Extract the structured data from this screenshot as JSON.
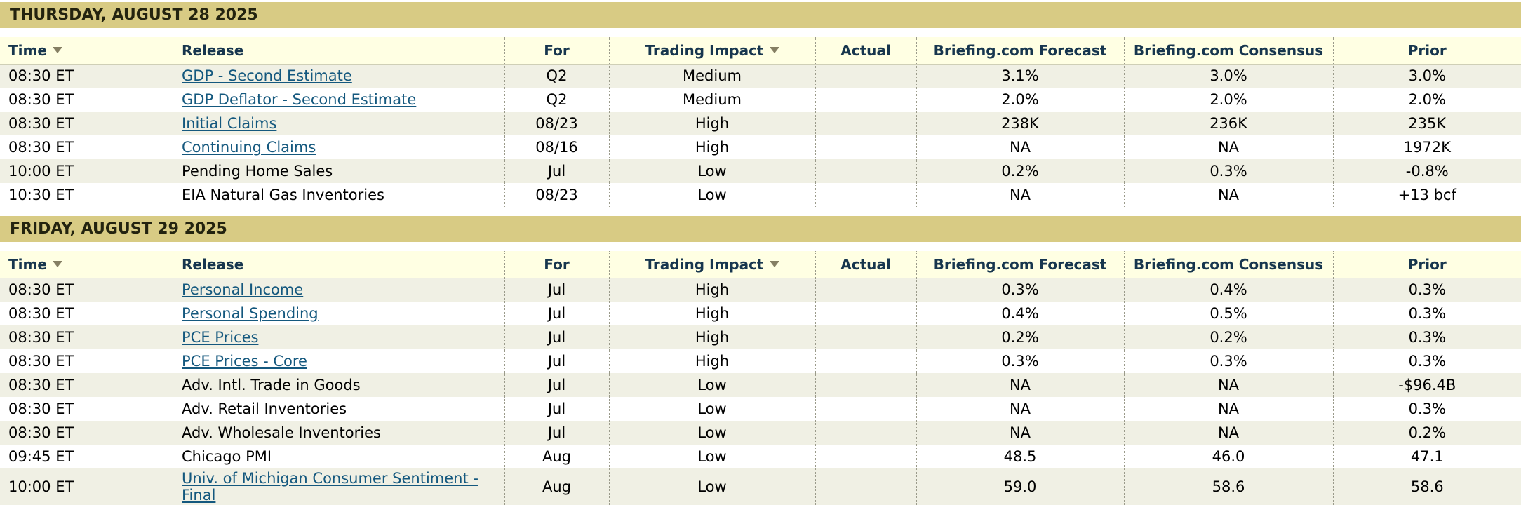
{
  "colors": {
    "day_header_bg": "#d8cb84",
    "day_header_text": "#23230f",
    "column_header_bg": "#ffffe3",
    "header_text": "#17364e",
    "row_alt_bg": "#f0f0e4",
    "link": "#14587e"
  },
  "icons": {
    "time_sort": "sort-down-triangle",
    "impact_filter": "sort-down-triangle"
  },
  "columns": {
    "time": "Time",
    "release": "Release",
    "for": "For",
    "impact": "Trading Impact",
    "actual": "Actual",
    "forecast": "Briefing.com Forecast",
    "consensus": "Briefing.com Consensus",
    "prior": "Prior"
  },
  "sections": [
    {
      "day": "THURSDAY, AUGUST 28 2025",
      "rows": [
        {
          "time": "08:30 ET",
          "release": "GDP - Second Estimate",
          "link": true,
          "for": "Q2",
          "impact": "Medium",
          "actual": "",
          "forecast": "3.1%",
          "consensus": "3.0%",
          "prior": "3.0%"
        },
        {
          "time": "08:30 ET",
          "release": "GDP Deflator - Second Estimate",
          "link": true,
          "for": "Q2",
          "impact": "Medium",
          "actual": "",
          "forecast": "2.0%",
          "consensus": "2.0%",
          "prior": "2.0%"
        },
        {
          "time": "08:30 ET",
          "release": "Initial Claims",
          "link": true,
          "for": "08/23",
          "impact": "High",
          "actual": "",
          "forecast": "238K",
          "consensus": "236K",
          "prior": "235K"
        },
        {
          "time": "08:30 ET",
          "release": "Continuing Claims",
          "link": true,
          "for": "08/16",
          "impact": "High",
          "actual": "",
          "forecast": "NA",
          "consensus": "NA",
          "prior": "1972K"
        },
        {
          "time": "10:00 ET",
          "release": "Pending Home Sales",
          "link": false,
          "for": "Jul",
          "impact": "Low",
          "actual": "",
          "forecast": "0.2%",
          "consensus": "0.3%",
          "prior": "-0.8%"
        },
        {
          "time": "10:30 ET",
          "release": "EIA Natural Gas Inventories",
          "link": false,
          "for": "08/23",
          "impact": "Low",
          "actual": "",
          "forecast": "NA",
          "consensus": "NA",
          "prior": "+13 bcf"
        }
      ]
    },
    {
      "day": "FRIDAY, AUGUST 29 2025",
      "rows": [
        {
          "time": "08:30 ET",
          "release": "Personal Income",
          "link": true,
          "for": "Jul",
          "impact": "High",
          "actual": "",
          "forecast": "0.3%",
          "consensus": "0.4%",
          "prior": "0.3%"
        },
        {
          "time": "08:30 ET",
          "release": "Personal Spending",
          "link": true,
          "for": "Jul",
          "impact": "High",
          "actual": "",
          "forecast": "0.4%",
          "consensus": "0.5%",
          "prior": "0.3%"
        },
        {
          "time": "08:30 ET",
          "release": "PCE Prices",
          "link": true,
          "for": "Jul",
          "impact": "High",
          "actual": "",
          "forecast": "0.2%",
          "consensus": "0.2%",
          "prior": "0.3%"
        },
        {
          "time": "08:30 ET",
          "release": "PCE Prices - Core",
          "link": true,
          "for": "Jul",
          "impact": "High",
          "actual": "",
          "forecast": "0.3%",
          "consensus": "0.3%",
          "prior": "0.3%"
        },
        {
          "time": "08:30 ET",
          "release": "Adv. Intl. Trade in Goods",
          "link": false,
          "for": "Jul",
          "impact": "Low",
          "actual": "",
          "forecast": "NA",
          "consensus": "NA",
          "prior": "-$96.4B"
        },
        {
          "time": "08:30 ET",
          "release": "Adv. Retail Inventories",
          "link": false,
          "for": "Jul",
          "impact": "Low",
          "actual": "",
          "forecast": "NA",
          "consensus": "NA",
          "prior": "0.3%"
        },
        {
          "time": "08:30 ET",
          "release": "Adv. Wholesale Inventories",
          "link": false,
          "for": "Jul",
          "impact": "Low",
          "actual": "",
          "forecast": "NA",
          "consensus": "NA",
          "prior": "0.2%"
        },
        {
          "time": "09:45 ET",
          "release": "Chicago PMI",
          "link": false,
          "for": "Aug",
          "impact": "Low",
          "actual": "",
          "forecast": "48.5",
          "consensus": "46.0",
          "prior": "47.1"
        },
        {
          "time": "10:00 ET",
          "release": "Univ. of Michigan Consumer Sentiment - Final",
          "link": true,
          "for": "Aug",
          "impact": "Low",
          "actual": "",
          "forecast": "59.0",
          "consensus": "58.6",
          "prior": "58.6"
        }
      ]
    }
  ]
}
